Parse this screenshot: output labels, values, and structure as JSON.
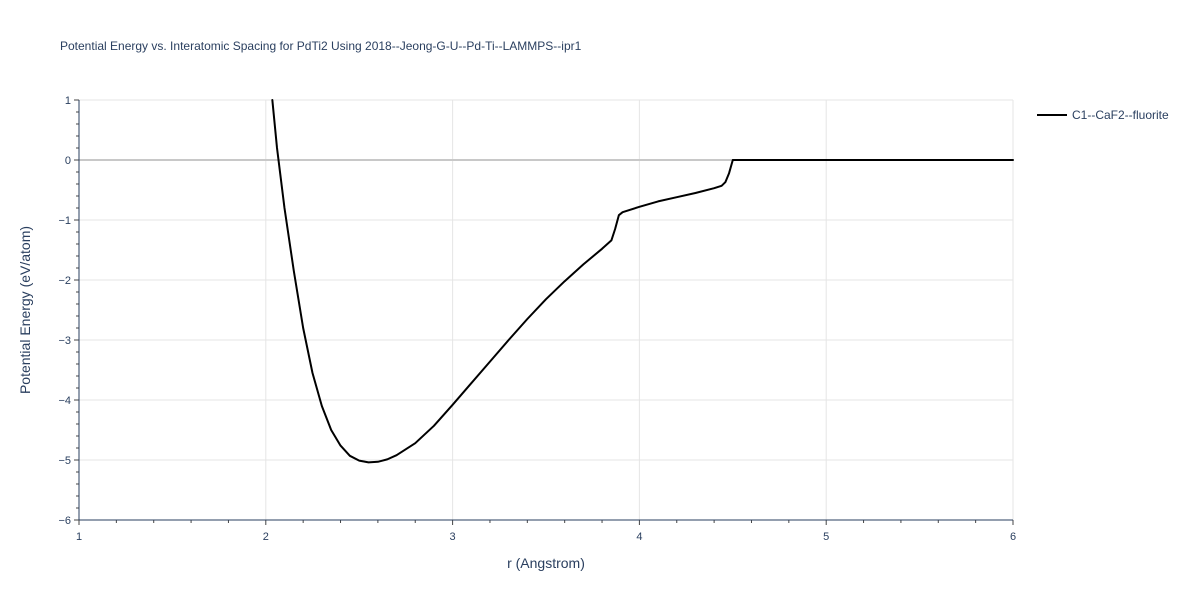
{
  "chart_data": {
    "type": "line",
    "title": "Potential Energy vs. Interatomic Spacing for PdTi2 Using 2018--Jeong-G-U--Pd-Ti--LAMMPS--ipr1",
    "xlabel": "r (Angstrom)",
    "ylabel": "Potential Energy (eV/atom)",
    "xlim": [
      1,
      6
    ],
    "ylim": [
      -6,
      1
    ],
    "x_ticks": [
      1,
      2,
      3,
      4,
      5,
      6
    ],
    "y_ticks": [
      1,
      0,
      -1,
      -2,
      -3,
      -4,
      -5,
      -6
    ],
    "x_tick_labels": [
      "1",
      "2",
      "3",
      "4",
      "5",
      "6"
    ],
    "y_tick_labels": [
      "1",
      "0",
      "−1",
      "−2",
      "−3",
      "−4",
      "−5",
      "−6"
    ],
    "grid": true,
    "legend_position": "top-right",
    "series": [
      {
        "name": "C1--CaF2--fluorite",
        "color": "#000000",
        "x": [
          2.035,
          2.06,
          2.1,
          2.15,
          2.2,
          2.25,
          2.3,
          2.35,
          2.4,
          2.45,
          2.5,
          2.55,
          2.6,
          2.65,
          2.7,
          2.8,
          2.9,
          3.0,
          3.1,
          3.2,
          3.3,
          3.4,
          3.5,
          3.6,
          3.7,
          3.8,
          3.85,
          3.87,
          3.89,
          3.91,
          4.0,
          4.1,
          4.2,
          4.3,
          4.4,
          4.44,
          4.46,
          4.48,
          4.5,
          4.6,
          4.8,
          5.0,
          5.5,
          6.0
        ],
        "y": [
          1.0,
          0.2,
          -0.8,
          -1.85,
          -2.8,
          -3.55,
          -4.1,
          -4.5,
          -4.76,
          -4.93,
          -5.01,
          -5.04,
          -5.03,
          -4.99,
          -4.92,
          -4.72,
          -4.43,
          -4.08,
          -3.72,
          -3.36,
          -3.0,
          -2.65,
          -2.32,
          -2.02,
          -1.74,
          -1.48,
          -1.34,
          -1.15,
          -0.92,
          -0.87,
          -0.78,
          -0.69,
          -0.62,
          -0.55,
          -0.47,
          -0.43,
          -0.37,
          -0.22,
          0.0,
          0.0,
          0.0,
          0.0,
          0.0,
          0.0
        ]
      }
    ]
  }
}
